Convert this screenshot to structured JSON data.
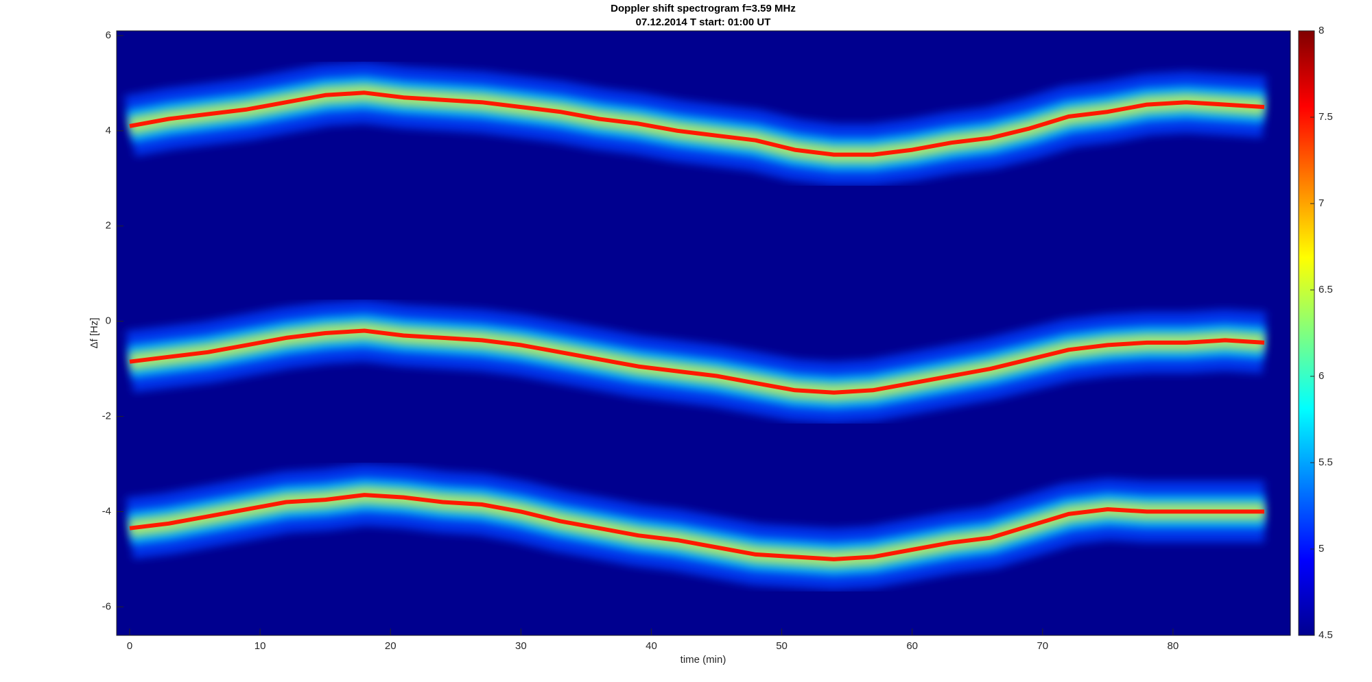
{
  "chart_data": {
    "type": "spectrogram",
    "title": "Doppler shift spectrogram f=3.59 MHz",
    "subtitle": "07.12.2014   T start: 01:00 UT",
    "x_label": "time (min)",
    "y_label": "Δf [Hz]",
    "x": [
      0,
      3,
      6,
      9,
      12,
      15,
      18,
      21,
      24,
      27,
      30,
      33,
      36,
      39,
      42,
      45,
      48,
      51,
      54,
      57,
      60,
      63,
      66,
      69,
      72,
      75,
      78,
      81,
      84,
      87
    ],
    "series": [
      {
        "color": "#ff1a00",
        "values": [
          4.1,
          4.25,
          4.35,
          4.45,
          4.6,
          4.75,
          4.8,
          4.7,
          4.65,
          4.6,
          4.5,
          4.4,
          4.25,
          4.15,
          4.0,
          3.9,
          3.8,
          3.6,
          3.5,
          3.5,
          3.6,
          3.75,
          3.85,
          4.05,
          4.3,
          4.4,
          4.55,
          4.6,
          4.55,
          4.5
        ]
      },
      {
        "color": "#ff1a00",
        "values": [
          -0.85,
          -0.75,
          -0.65,
          -0.5,
          -0.35,
          -0.25,
          -0.2,
          -0.3,
          -0.35,
          -0.4,
          -0.5,
          -0.65,
          -0.8,
          -0.95,
          -1.05,
          -1.15,
          -1.3,
          -1.45,
          -1.5,
          -1.45,
          -1.3,
          -1.15,
          -1.0,
          -0.8,
          -0.6,
          -0.5,
          -0.45,
          -0.45,
          -0.4,
          -0.45
        ]
      },
      {
        "color": "#ff1a00",
        "values": [
          -4.35,
          -4.25,
          -4.1,
          -3.95,
          -3.8,
          -3.75,
          -3.65,
          -3.7,
          -3.8,
          -3.85,
          -4.0,
          -4.2,
          -4.35,
          -4.5,
          -4.6,
          -4.75,
          -4.9,
          -4.95,
          -5.0,
          -4.95,
          -4.8,
          -4.65,
          -4.55,
          -4.3,
          -4.05,
          -3.95,
          -4.0,
          -4.0,
          -4.0,
          -4.0
        ]
      }
    ],
    "xlim": [
      -1,
      89
    ],
    "ylim": [
      -6.6,
      6.1
    ],
    "xticks": [
      0,
      10,
      20,
      30,
      40,
      50,
      60,
      70,
      80
    ],
    "yticks": [
      -6,
      -4,
      -2,
      0,
      2,
      4,
      6
    ],
    "clim": [
      4.5,
      8
    ],
    "cticks": [
      4.5,
      5,
      5.5,
      6,
      6.5,
      7,
      7.5,
      8
    ],
    "colormap": "jet"
  }
}
